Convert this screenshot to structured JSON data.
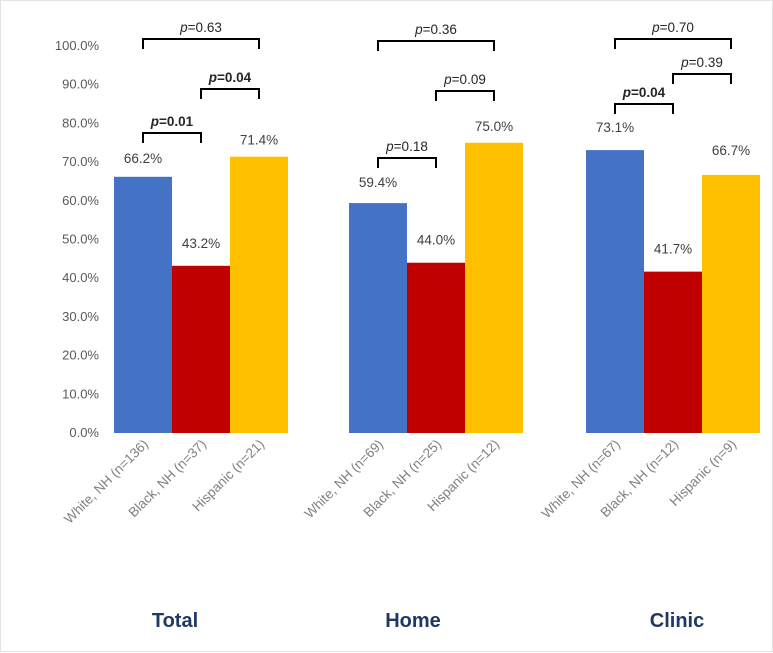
{
  "chart_data": {
    "type": "bar",
    "y_ticks": [
      "0.0%",
      "10.0%",
      "20.0%",
      "30.0%",
      "40.0%",
      "50.0%",
      "60.0%",
      "70.0%",
      "80.0%",
      "90.0%",
      "100.0%"
    ],
    "ylim": [
      0,
      100
    ],
    "grid": false,
    "legend": "none",
    "series_colors": [
      "#4472c4",
      "#c00000",
      "#ffc000"
    ],
    "group_label_color": "#1f3864",
    "groups": [
      {
        "label": "Total",
        "bars": [
          {
            "category": "White, NH (n=136)",
            "value": 66.2,
            "label": "66.2%"
          },
          {
            "category": "Black, NH (n=37)",
            "value": 43.2,
            "label": "43.2%"
          },
          {
            "category": "Hispanic (n=21)",
            "value": 71.4,
            "label": "71.4%"
          }
        ],
        "comparisons": [
          {
            "from": 0,
            "to": 1,
            "p": "0.01",
            "significant": true
          },
          {
            "from": 1,
            "to": 2,
            "p": "0.04",
            "significant": true
          },
          {
            "from": 0,
            "to": 2,
            "p": "0.63",
            "significant": false
          }
        ]
      },
      {
        "label": "Home",
        "bars": [
          {
            "category": "White, NH (n=69)",
            "value": 59.4,
            "label": "59.4%"
          },
          {
            "category": "Black, NH (n=25)",
            "value": 44.0,
            "label": "44.0%"
          },
          {
            "category": "Hispanic (n=12)",
            "value": 75.0,
            "label": "75.0%"
          }
        ],
        "comparisons": [
          {
            "from": 0,
            "to": 1,
            "p": "0.18",
            "significant": false
          },
          {
            "from": 1,
            "to": 2,
            "p": "0.09",
            "significant": false
          },
          {
            "from": 0,
            "to": 2,
            "p": "0.36",
            "significant": false
          }
        ]
      },
      {
        "label": "Clinic",
        "bars": [
          {
            "category": "White, NH (n=67)",
            "value": 73.1,
            "label": "73.1%"
          },
          {
            "category": "Black, NH (n=12)",
            "value": 41.7,
            "label": "41.7%"
          },
          {
            "category": "Hispanic (n=9)",
            "value": 66.7,
            "label": "66.7%"
          }
        ],
        "comparisons": [
          {
            "from": 0,
            "to": 1,
            "p": "0.04",
            "significant": true
          },
          {
            "from": 1,
            "to": 2,
            "p": "0.39",
            "significant": false
          },
          {
            "from": 0,
            "to": 2,
            "p": "0.70",
            "significant": false
          }
        ]
      }
    ]
  }
}
